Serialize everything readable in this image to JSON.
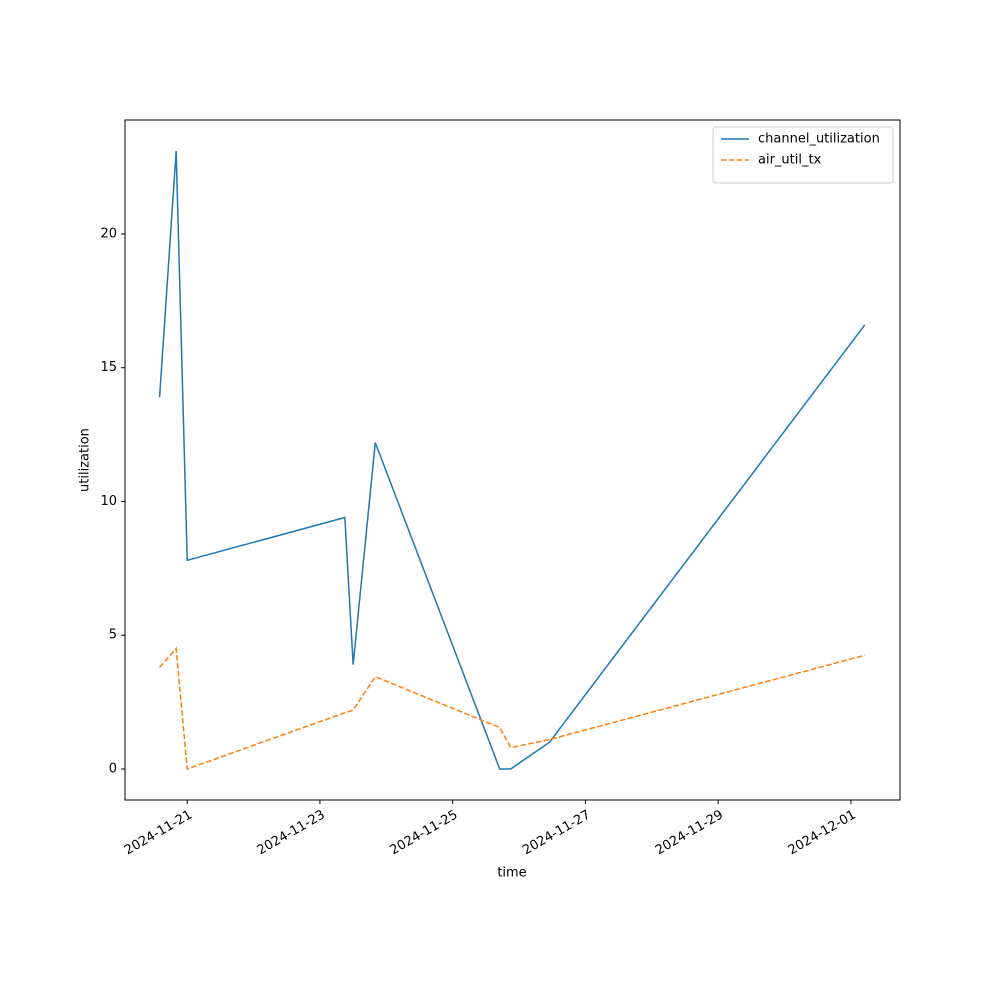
{
  "chart_data": {
    "type": "line",
    "x_label": "time",
    "y_label": "utilization",
    "x": [
      "2024-11-20T14:00",
      "2024-11-20T20:00",
      "2024-11-21T00:00",
      "2024-11-23T09:00",
      "2024-11-23T12:00",
      "2024-11-23T20:00",
      "2024-11-25T17:00",
      "2024-11-25T21:00",
      "2024-11-26T11:00",
      "2024-12-01T05:00"
    ],
    "series": [
      {
        "name": "channel_utilization",
        "color": "#1f77b4",
        "dash": "solid",
        "values": [
          13.9,
          23.1,
          7.8,
          9.4,
          3.9,
          12.2,
          0,
          0,
          1.0,
          16.6
        ]
      },
      {
        "name": "air_util_tx",
        "color": "#ff7f0e",
        "dash": "dashed",
        "values": [
          3.8,
          4.5,
          0,
          2.1,
          2.2,
          3.45,
          1.55,
          0.8,
          1.1,
          4.25
        ]
      }
    ],
    "xlim": [
      "2024-11-20T01:30",
      "2024-12-01T17:45"
    ],
    "xticks": [
      "2024-11-21",
      "2024-11-23",
      "2024-11-25",
      "2024-11-27",
      "2024-11-29",
      "2024-12-01"
    ],
    "ylim": [
      -1.16,
      24.26
    ],
    "yticks": [
      0,
      5,
      10,
      15,
      20
    ],
    "legend": "upper right"
  }
}
